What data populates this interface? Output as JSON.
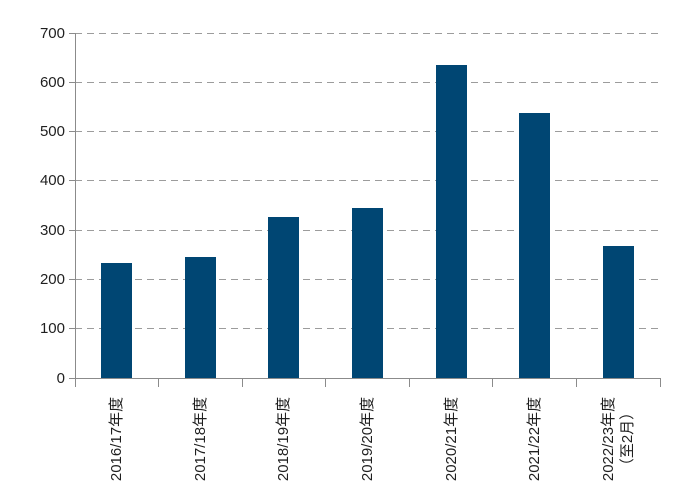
{
  "chart_data": {
    "type": "bar",
    "categories": [
      "2016/17年度",
      "2017/18年度",
      "2018/19年度",
      "2019/20年度",
      "2020/21年度",
      "2021/22年度",
      "2022/23年度\n（至2月）"
    ],
    "values": [
      233,
      245,
      327,
      345,
      635,
      537,
      267
    ],
    "title": "",
    "xlabel": "",
    "ylabel": "",
    "ylim": [
      0,
      700
    ],
    "yticks": [
      0,
      100,
      200,
      300,
      400,
      500,
      600,
      700
    ],
    "grid": "horizontal-dashed",
    "legend_position": "none",
    "colors": {
      "bar": "#004673",
      "gridline": "#9c9c9c",
      "axis": "#8b8b8b",
      "text": "#1f1f1f"
    }
  }
}
